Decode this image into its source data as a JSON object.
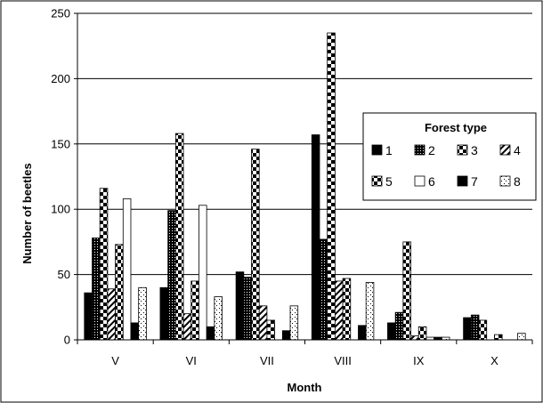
{
  "chart_data": {
    "type": "bar",
    "title": "",
    "xlabel": "Month",
    "ylabel": "Number of beetles",
    "categories": [
      "V",
      "VI",
      "VII",
      "VIII",
      "IX",
      "X"
    ],
    "ylim": [
      0,
      250
    ],
    "yticks": [
      0,
      50,
      100,
      150,
      200,
      250
    ],
    "grid": true,
    "legend": {
      "title": "Forest type",
      "placement": "right"
    },
    "series": [
      {
        "name": "1",
        "pattern": "solid",
        "values": [
          36,
          40,
          52,
          157,
          13,
          17
        ]
      },
      {
        "name": "2",
        "pattern": "dots",
        "values": [
          78,
          99,
          48,
          77,
          21,
          19
        ]
      },
      {
        "name": "3",
        "pattern": "zigzag",
        "values": [
          116,
          158,
          146,
          235,
          75,
          15
        ]
      },
      {
        "name": "4",
        "pattern": "diagonal",
        "values": [
          39,
          20,
          26,
          45,
          3,
          0
        ]
      },
      {
        "name": "5",
        "pattern": "zigzag",
        "values": [
          73,
          45,
          15,
          47,
          10,
          4
        ]
      },
      {
        "name": "6",
        "pattern": "white",
        "values": [
          108,
          103,
          0,
          0,
          2,
          0
        ]
      },
      {
        "name": "7",
        "pattern": "solid",
        "values": [
          13,
          10,
          7,
          11,
          2,
          0
        ]
      },
      {
        "name": "8",
        "pattern": "sparse-dots",
        "values": [
          40,
          33,
          26,
          44,
          2,
          5
        ]
      }
    ]
  }
}
